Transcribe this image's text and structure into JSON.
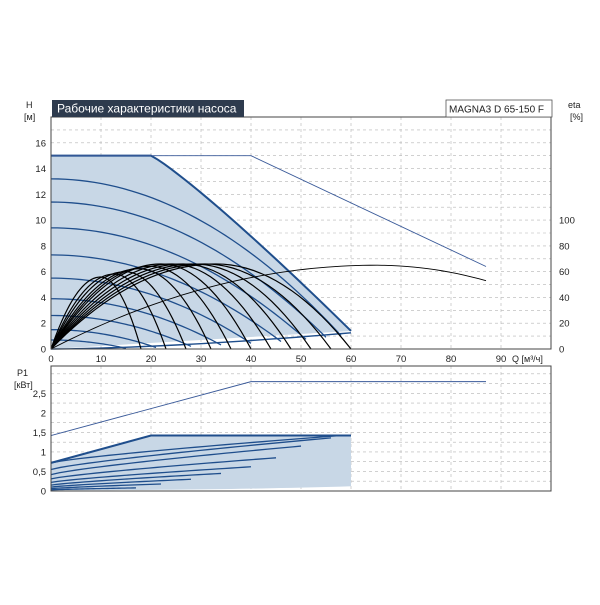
{
  "chart_data": [
    {
      "type": "line",
      "title": "Рабочие характеристики насоса",
      "model": "MAGNA3 D 65-150 F",
      "ylabel_main": "H",
      "yunit_main": "[м]",
      "ylabel_secondary": "eta",
      "yunit_secondary": "[%]",
      "xlabel": "Q [м³/ч]",
      "xlim": [
        0,
        100
      ],
      "ylim": [
        0,
        18
      ],
      "y2lim": [
        0,
        180
      ],
      "grid": true,
      "x_ticks": [
        "0",
        "10",
        "20",
        "30",
        "40",
        "50",
        "60",
        "70",
        "80",
        "90"
      ],
      "y_ticks": [
        "0",
        "2",
        "4",
        "6",
        "8",
        "10",
        "12",
        "14",
        "16"
      ],
      "y2_ticks": [
        "0",
        "20",
        "40",
        "60",
        "80",
        "100"
      ],
      "colors": {
        "envelope": "#1f4e8c",
        "fill": "#c8d7e6",
        "curves": "#1f4e8c",
        "eta": "#000000",
        "thin": "#3a5a99",
        "title_bg": "#2e3b4e"
      },
      "envelope": {
        "max_head_to": 20,
        "max_head": 15,
        "end_q": 60,
        "end_h": 1.4
      },
      "head_curves": [
        {
          "h0": 13.2,
          "qmax": 58.0
        },
        {
          "h0": 11.4,
          "qmax": 55.0
        },
        {
          "h0": 9.4,
          "qmax": 51.0
        },
        {
          "h0": 7.3,
          "qmax": 46.0
        },
        {
          "h0": 5.5,
          "qmax": 40.0
        },
        {
          "h0": 3.9,
          "qmax": 34.0
        },
        {
          "h0": 2.6,
          "qmax": 28.0
        },
        {
          "h0": 1.5,
          "qmax": 21.0
        },
        {
          "h0": 0.7,
          "qmax": 15.0
        }
      ],
      "eta_curves_qmax": [
        18,
        23,
        27,
        32,
        36,
        40,
        44,
        48,
        52,
        56,
        60
      ],
      "eta_curves_peak": 66,
      "extended_head_line": {
        "x": [
          0,
          40,
          87
        ],
        "y": [
          15,
          15,
          6.4
        ]
      },
      "extended_eta_line": {
        "q_start": 0,
        "q_end": 87,
        "peak_q": 65,
        "peak_eta": 65,
        "end_eta": 53
      }
    },
    {
      "type": "line",
      "ylabel": "P1",
      "yunit": "[кВт]",
      "xlim": [
        0,
        100
      ],
      "ylim": [
        0,
        3.2
      ],
      "grid": true,
      "y_ticks": [
        "0",
        "0,5",
        "1",
        "1,5",
        "2",
        "2,5"
      ],
      "colors": {
        "envelope": "#1f4e8c",
        "fill": "#c8d7e6",
        "curves": "#1f4e8c",
        "thin": "#3a5a99"
      },
      "envelope": {
        "p0": 0.72,
        "corner_q": 20,
        "corner_p": 1.42,
        "end_q": 60
      },
      "power_curves": [
        {
          "p0": 0.72,
          "qmax": 58,
          "pend": 1.42
        },
        {
          "p0": 0.55,
          "qmax": 56,
          "pend": 1.36
        },
        {
          "p0": 0.42,
          "qmax": 50,
          "pend": 1.15
        },
        {
          "p0": 0.31,
          "qmax": 45,
          "pend": 0.85
        },
        {
          "p0": 0.22,
          "qmax": 40,
          "pend": 0.62
        },
        {
          "p0": 0.15,
          "qmax": 34,
          "pend": 0.45
        },
        {
          "p0": 0.1,
          "qmax": 28,
          "pend": 0.3
        },
        {
          "p0": 0.06,
          "qmax": 22,
          "pend": 0.18
        },
        {
          "p0": 0.03,
          "qmax": 17,
          "pend": 0.08
        }
      ],
      "extended_power_line": {
        "x": [
          0,
          40,
          87
        ],
        "y": [
          1.42,
          2.8,
          2.8
        ]
      }
    }
  ]
}
